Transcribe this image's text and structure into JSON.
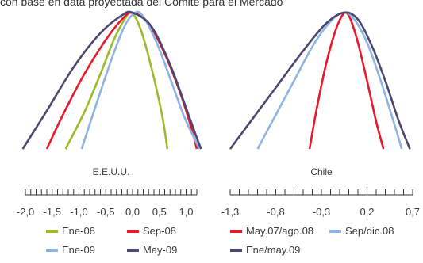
{
  "header_text": "con base en data proyectada del Comité para el Mercado",
  "chart_data": [
    {
      "type": "line",
      "title": "E.E.U.U.",
      "xlabel": "",
      "ylabel": "",
      "xlim": [
        -2.0,
        1.2
      ],
      "tick_labels": [
        "-2,0",
        "-1,5",
        "-1,0",
        "-0,5",
        "0,0",
        "0,5",
        "1,0"
      ],
      "tick_values": [
        -2.0,
        -1.5,
        -1.0,
        -0.5,
        0.0,
        0.5,
        1.0
      ],
      "minor_tick_step": 0.1,
      "grid": false,
      "legend_position": "bottom",
      "series": [
        {
          "name": "Ene-08",
          "color": "#9bbb29",
          "x": [
            -1.25,
            -0.9,
            -0.6,
            -0.35,
            -0.15,
            -0.02,
            0.15,
            0.35,
            0.55,
            0.65
          ],
          "y": [
            0.0,
            0.27,
            0.55,
            0.8,
            0.95,
            1.0,
            0.88,
            0.6,
            0.25,
            0.0
          ]
        },
        {
          "name": "Sep-08",
          "color": "#e8192c",
          "x": [
            -1.6,
            -1.3,
            -0.9,
            -0.5,
            -0.2,
            0.0,
            0.3,
            0.6,
            0.9,
            1.1,
            1.2
          ],
          "y": [
            0.0,
            0.25,
            0.55,
            0.8,
            0.95,
            1.0,
            0.92,
            0.7,
            0.4,
            0.15,
            0.0
          ]
        },
        {
          "name": "Ene-09",
          "color": "#8eb4e3",
          "x": [
            -0.95,
            -0.7,
            -0.4,
            -0.15,
            0.05,
            0.2,
            0.45,
            0.7,
            0.95,
            1.15,
            1.25
          ],
          "y": [
            0.0,
            0.3,
            0.65,
            0.9,
            1.0,
            0.97,
            0.78,
            0.52,
            0.25,
            0.08,
            0.0
          ]
        },
        {
          "name": "May-09",
          "color": "#4a4870",
          "x": [
            -2.05,
            -1.6,
            -1.1,
            -0.6,
            -0.2,
            0.0,
            0.35,
            0.7,
            1.0,
            1.2,
            1.28
          ],
          "y": [
            0.0,
            0.28,
            0.6,
            0.85,
            0.98,
            1.0,
            0.9,
            0.62,
            0.3,
            0.08,
            0.0
          ]
        }
      ]
    },
    {
      "type": "line",
      "title": "Chile",
      "xlabel": "",
      "ylabel": "",
      "xlim": [
        -1.3,
        0.7
      ],
      "tick_labels": [
        "-1,3",
        "-0,8",
        "-0,3",
        "0,2",
        "0,7"
      ],
      "tick_values": [
        -1.3,
        -0.8,
        -0.3,
        0.2,
        0.7
      ],
      "minor_tick_step": 0.1,
      "grid": false,
      "legend_position": "bottom",
      "series": [
        {
          "name": "May.07/ago.08",
          "color": "#e8192c",
          "x": [
            -0.43,
            -0.35,
            -0.25,
            -0.15,
            -0.08,
            -0.03,
            0.02,
            0.1,
            0.2,
            0.3,
            0.38
          ],
          "y": [
            0.0,
            0.3,
            0.62,
            0.86,
            0.97,
            1.0,
            0.95,
            0.78,
            0.5,
            0.2,
            0.0
          ]
        },
        {
          "name": "Sep/dic.08",
          "color": "#8eb4e3",
          "x": [
            -1.0,
            -0.8,
            -0.6,
            -0.4,
            -0.22,
            -0.07,
            0.05,
            0.2,
            0.35,
            0.5,
            0.58
          ],
          "y": [
            0.0,
            0.25,
            0.5,
            0.75,
            0.92,
            1.0,
            0.96,
            0.78,
            0.5,
            0.18,
            0.0
          ]
        },
        {
          "name": "Ene/may.09",
          "color": "#4a4870",
          "x": [
            -1.3,
            -1.1,
            -0.8,
            -0.5,
            -0.25,
            -0.05,
            0.1,
            0.25,
            0.4,
            0.55,
            0.67
          ],
          "y": [
            0.0,
            0.18,
            0.45,
            0.72,
            0.92,
            1.0,
            0.95,
            0.76,
            0.5,
            0.2,
            0.0
          ]
        }
      ]
    }
  ],
  "legend_rows": [
    [
      {
        "label": "Ene-08",
        "color": "#9bbb29"
      },
      {
        "label": "Sep-08",
        "color": "#e8192c"
      },
      {
        "label": "May.07/ago.08",
        "color": "#e8192c"
      },
      {
        "label": "Sep/dic.08",
        "color": "#8eb4e3"
      }
    ],
    [
      {
        "label": "Ene-09",
        "color": "#8eb4e3"
      },
      {
        "label": "May-09",
        "color": "#4a4870"
      },
      {
        "label": "Ene/may.09",
        "color": "#4a4870"
      }
    ]
  ]
}
